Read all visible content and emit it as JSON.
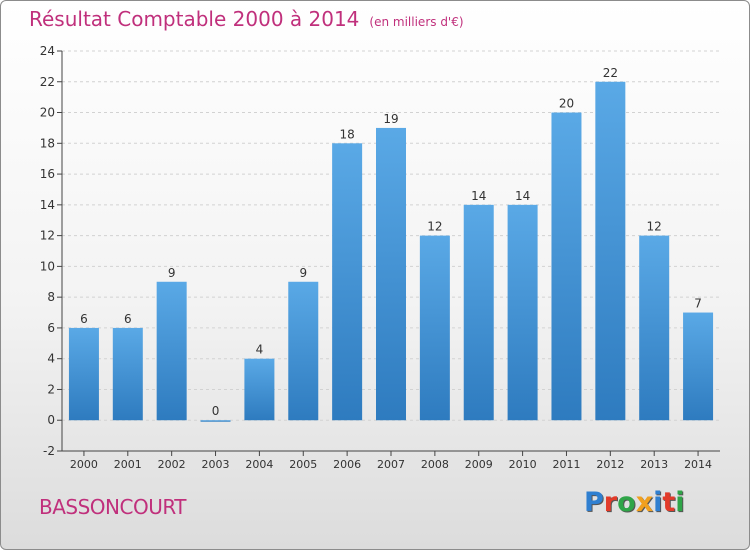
{
  "title": "Résultat Comptable 2000 à 2014",
  "unit_note": "(en milliers d'€)",
  "location": "BASSONCOURT",
  "logo": {
    "text": "Proxiti",
    "letter_colors": [
      "#2f7fd0",
      "#e23b2a",
      "#2fa548",
      "#f0a020",
      "#2f7fd0",
      "#e23b2a",
      "#2fa548"
    ]
  },
  "colors": {
    "bar_top": "#5aa9e6",
    "bar_bottom": "#2e7bbf",
    "axis": "#444444",
    "grid": "#d2d2d2",
    "title": "#c0307c"
  },
  "chart_data": {
    "type": "bar",
    "categories": [
      "2000",
      "2001",
      "2002",
      "2003",
      "2004",
      "2005",
      "2006",
      "2007",
      "2008",
      "2009",
      "2010",
      "2011",
      "2012",
      "2013",
      "2014"
    ],
    "values": [
      6,
      6,
      9,
      0,
      4,
      9,
      18,
      19,
      12,
      14,
      14,
      20,
      22,
      12,
      7
    ],
    "ylim": [
      -2,
      24
    ],
    "yticks": [
      -2,
      0,
      2,
      4,
      6,
      8,
      10,
      12,
      14,
      16,
      18,
      20,
      22,
      24
    ],
    "grid": true,
    "legend": "none"
  }
}
